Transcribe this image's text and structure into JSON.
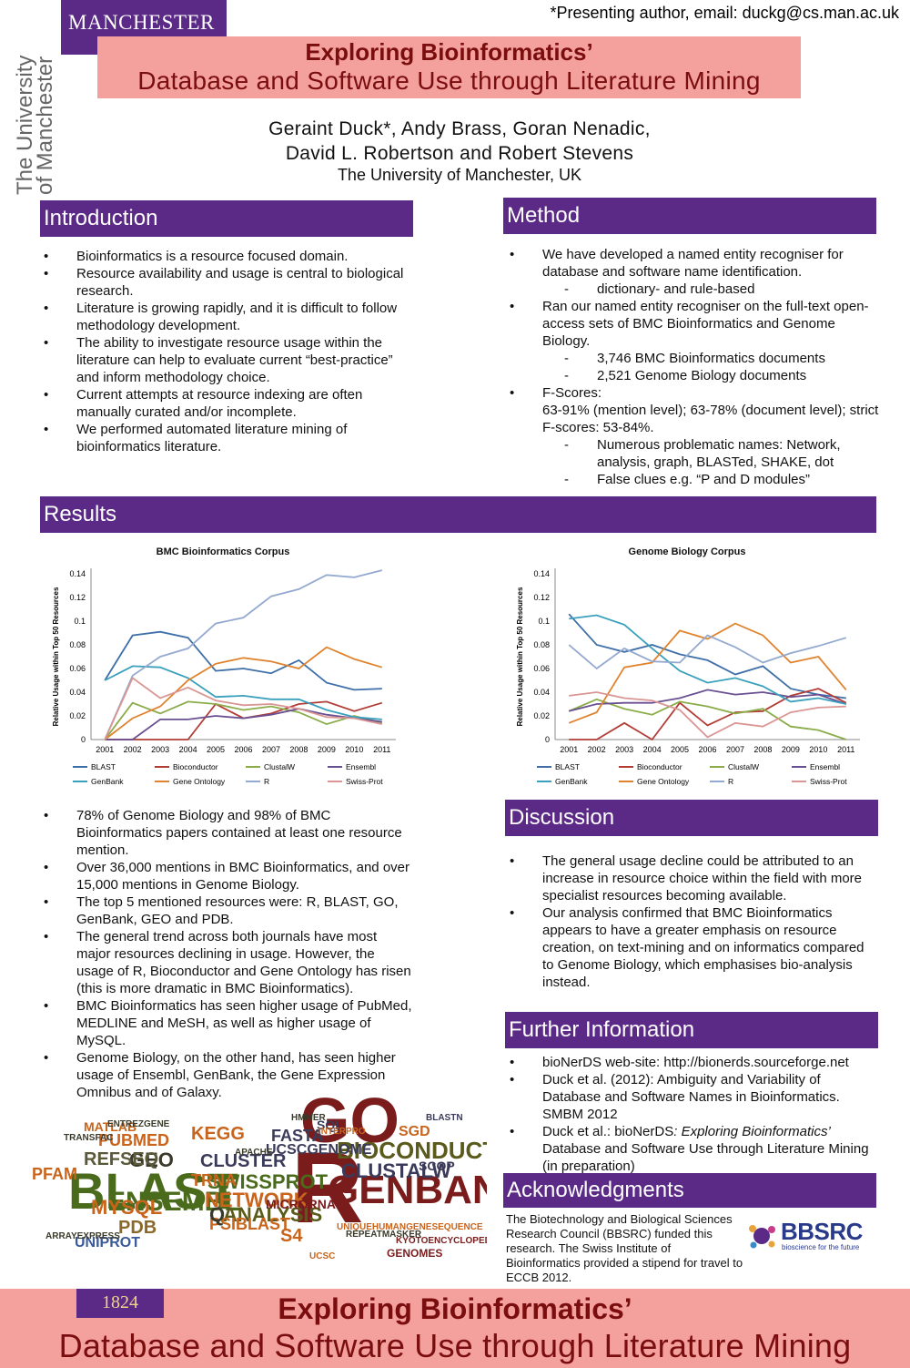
{
  "header": {
    "logo_name": "MANCHESTER",
    "logo_year": "1824",
    "univ_line1": "The University",
    "univ_line2": "of Manchester",
    "presenting": "*Presenting author, email: duckg@cs.man.ac.uk",
    "title_line1": "Exploring Bioinformatics’",
    "title_line2": "Database and Software Use through Literature Mining",
    "authors_line1": "Geraint Duck*, Andy Brass, Goran Nenadic,",
    "authors_line2": "David L. Robertson and Robert Stevens",
    "affiliation": "The University of Manchester, UK"
  },
  "introduction": {
    "heading": "Introduction",
    "bullets": [
      "Bioinformatics is a resource focused domain.",
      "Resource availability and usage is central to biological research.",
      "Literature is growing rapidly, and it is difficult to follow methodology development.",
      "The ability to investigate resource usage within the literature can help to evaluate current “best-practice” and inform methodology choice.",
      "Current attempts at resource indexing are often manually curated and/or incomplete.",
      "We performed automated literature mining of bioinformatics literature."
    ]
  },
  "method": {
    "heading": "Method",
    "b1": "We have developed a named entity recogniser for database and software name identification.",
    "b1_sub": "dictionary- and rule-based",
    "b2": "Ran our named entity recogniser on the full-text open-access sets of BMC Bioinformatics and Genome Biology.",
    "b2_sub1": "3,746 BMC Bioinformatics documents",
    "b2_sub2": "2,521 Genome Biology documents",
    "b3_line1": "F-Scores:",
    "b3_line2": "63-91% (mention level); 63-78% (document level); strict F-scores: 53-84%.",
    "b3_sub1": "Numerous problematic names: Network, analysis, graph, BLASTed, SHAKE, dot",
    "b3_sub2": "False clues e.g. “P and D modules”"
  },
  "results": {
    "heading": "Results",
    "bullets": [
      "78% of Genome Biology and 98% of BMC Bioinformatics papers contained at least one resource mention.",
      "Over 36,000 mentions in BMC Bioinformatics, and over 15,000 mentions in Genome Biology.",
      "The top 5 mentioned resources were: R, BLAST, GO, GenBank, GEO and PDB.",
      "The general trend across both journals have most major resources declining in usage. However, the usage of R, Bioconductor and Gene Ontology has risen (this is more dramatic in BMC Bioinformatics).",
      "BMC Bioinformatics has seen higher usage of PubMed, MEDLINE and MeSH, as well as higher usage of MySQL.",
      "Genome Biology, on the other hand, has seen higher usage of Ensembl, GenBank, the Gene Expression Omnibus and of Galaxy."
    ]
  },
  "discussion": {
    "heading": "Discussion",
    "bullets": [
      "The general usage decline could be attributed to an increase in resource choice within the field with more specialist resources becoming available.",
      "Our analysis confirmed that BMC Bioinformatics appears to have a greater emphasis on resource creation, on text-mining and on informatics compared to Genome Biology, which emphasises bio-analysis instead."
    ]
  },
  "further": {
    "heading": "Further Information",
    "b1": "bioNerDS web-site: http://bionerds.sourceforge.net",
    "b2": "Duck et al. (2012): Ambiguity and Variability of Database and Software Names in Bioinformatics. SMBM 2012",
    "b3_a": "Duck et al.: bioNerDS",
    "b3_b": ": Exploring Bioinformatics’",
    "b3_c": " Database and Software Use through Literature Mining (in preparation)"
  },
  "acknowledgments": {
    "heading": "Acknowledgments",
    "text": "The Biotechnology and Biological Sciences Research Council (BBSRC) funded this research. The Swiss Institute of Bioinformatics provided a stipend for travel to ECCB 2012.",
    "logo_text": "BBSRC",
    "logo_tagline": "bioscience for the future"
  },
  "footer": {
    "year": "1824",
    "line1": "Exploring Bioinformatics’",
    "line2": "Database and Software Use through Literature Mining"
  },
  "word_cloud": {
    "words": [
      {
        "t": "GO",
        "c": "#7a1c1c"
      },
      {
        "t": "BLAST",
        "c": "#4a6a1c"
      },
      {
        "t": "R",
        "c": "#7a1c1c"
      },
      {
        "t": "GENBANK",
        "c": "#7a1c1c"
      },
      {
        "t": "BIOCONDUCTOR",
        "c": "#5a5a1c"
      },
      {
        "t": "ENSEMBL",
        "c": "#4a6a1c"
      },
      {
        "t": "GEO",
        "c": "#3a3a2a"
      },
      {
        "t": "SWISSPROT",
        "c": "#4a6a1c"
      },
      {
        "t": "CLUSTALW",
        "c": "#3a3a5a"
      },
      {
        "t": "NETWORK",
        "c": "#c8641c"
      },
      {
        "t": "CLUSTER",
        "c": "#3a3a5a"
      },
      {
        "t": "PDB",
        "c": "#8a6a2a"
      },
      {
        "t": "MYSQL",
        "c": "#c8641c"
      },
      {
        "t": "KEGG",
        "c": "#c8641c"
      },
      {
        "t": "REFSEQ",
        "c": "#5a5a3a"
      },
      {
        "t": "PUBMED",
        "c": "#c8641c"
      },
      {
        "t": "ANALYSIS",
        "c": "#5a5a1c"
      },
      {
        "t": "PSIBLAST",
        "c": "#c8641c"
      },
      {
        "t": "FASTA",
        "c": "#3a3a5a"
      },
      {
        "t": "UCSCGENOME",
        "c": "#3a3a5a"
      },
      {
        "t": "PFAM",
        "c": "#c8641c"
      },
      {
        "t": "UNIPROT",
        "c": "#3a5a9a"
      },
      {
        "t": "TRNA",
        "c": "#c8641c"
      },
      {
        "t": "Q",
        "c": "#3a3a2a"
      },
      {
        "t": "S4",
        "c": "#c8641c"
      },
      {
        "t": "SGD",
        "c": "#c8641c"
      },
      {
        "t": "SCOP",
        "c": "#3a3a5a"
      },
      {
        "t": "MICRORNA",
        "c": "#7a1c1c"
      },
      {
        "t": "SQL",
        "c": "#3a3a5a"
      },
      {
        "t": "MATLAB",
        "c": "#c8641c"
      },
      {
        "t": "GENOMES",
        "c": "#7a1c1c"
      },
      {
        "t": "ARRAYEXPRESS",
        "c": "#3a3a2a"
      },
      {
        "t": "KYOTOENCYCLOPEDIA",
        "c": "#7a1c1c"
      },
      {
        "t": "UNIQUEHUMANGENESEQUENCE",
        "c": "#c8641c"
      },
      {
        "t": "REPEATMASKER",
        "c": "#3a3a2a"
      },
      {
        "t": "HMMER",
        "c": "#3a3a2a"
      },
      {
        "t": "APACHE",
        "c": "#3a3a2a"
      },
      {
        "t": "INTERPRO",
        "c": "#c8641c"
      },
      {
        "t": "TRANSFAC",
        "c": "#3a3a2a"
      },
      {
        "t": "ENTREZGENE",
        "c": "#3a3a2a"
      },
      {
        "t": "UCSC",
        "c": "#c8641c"
      },
      {
        "t": "BLASTN",
        "c": "#3a3a5a"
      }
    ]
  },
  "chart_data": [
    {
      "type": "line",
      "title": "BMC Bioinformatics Corpus",
      "xlabel": "",
      "ylabel": "Relative Usage within Top 50 Resources",
      "x": [
        "2001",
        "2002",
        "2003",
        "2004",
        "2005",
        "2006",
        "2007",
        "2008",
        "2009",
        "2010",
        "2011"
      ],
      "ylim": [
        0,
        0.14
      ],
      "yticks": [
        "0",
        "0.02",
        "0.04",
        "0.06",
        "0.08",
        "0.1",
        "0.12",
        "0.14"
      ],
      "legend_position": "bottom",
      "series": [
        {
          "name": "BLAST",
          "color": "#3f6fa8",
          "values": [
            0.05,
            0.088,
            0.091,
            0.086,
            0.058,
            0.06,
            0.056,
            0.067,
            0.048,
            0.042,
            0.043
          ]
        },
        {
          "name": "Bioconductor",
          "color": "#b23c36",
          "values": [
            0,
            0,
            0,
            0,
            0.03,
            0.018,
            0.022,
            0.03,
            0.032,
            0.024,
            0.031
          ]
        },
        {
          "name": "ClustalW",
          "color": "#8aac49",
          "values": [
            0,
            0.031,
            0.022,
            0.032,
            0.03,
            0.025,
            0.028,
            0.023,
            0.013,
            0.02,
            0.014
          ]
        },
        {
          "name": "Ensembl",
          "color": "#6a4f91",
          "values": [
            0,
            0,
            0.017,
            0.017,
            0.02,
            0.018,
            0.021,
            0.026,
            0.021,
            0.018,
            0.015
          ]
        },
        {
          "name": "GenBank",
          "color": "#3aa0bc",
          "values": [
            0.05,
            0.062,
            0.061,
            0.052,
            0.036,
            0.037,
            0.034,
            0.034,
            0.025,
            0.019,
            0.017
          ]
        },
        {
          "name": "Gene Ontology",
          "color": "#e0832e",
          "values": [
            0,
            0.018,
            0.028,
            0.05,
            0.064,
            0.069,
            0.066,
            0.06,
            0.078,
            0.068,
            0.061
          ]
        },
        {
          "name": "R",
          "color": "#93a9cf",
          "values": [
            0,
            0.054,
            0.07,
            0.077,
            0.098,
            0.103,
            0.121,
            0.127,
            0.139,
            0.137,
            0.143
          ]
        },
        {
          "name": "Swiss-Prot",
          "color": "#d99694",
          "values": [
            0,
            0.052,
            0.035,
            0.044,
            0.033,
            0.029,
            0.03,
            0.026,
            0.019,
            0.018,
            0.013
          ]
        }
      ]
    },
    {
      "type": "line",
      "title": "Genome Biology Corpus",
      "xlabel": "",
      "ylabel": "Relative Usage within Top 50 Resources",
      "x": [
        "2001",
        "2002",
        "2003",
        "2004",
        "2005",
        "2006",
        "2007",
        "2008",
        "2009",
        "2010",
        "2011"
      ],
      "ylim": [
        0,
        0.14
      ],
      "yticks": [
        "0",
        "0.02",
        "0.04",
        "0.06",
        "0.08",
        "0.1",
        "0.12",
        "0.14"
      ],
      "legend_position": "bottom",
      "series": [
        {
          "name": "BLAST",
          "color": "#3f6fa8",
          "values": [
            0.106,
            0.08,
            0.074,
            0.08,
            0.072,
            0.067,
            0.055,
            0.062,
            0.043,
            0.038,
            0.035
          ]
        },
        {
          "name": "Bioconductor",
          "color": "#b23c36",
          "values": [
            0,
            0,
            0.014,
            0,
            0.031,
            0.012,
            0.023,
            0.024,
            0.037,
            0.043,
            0.031
          ]
        },
        {
          "name": "ClustalW",
          "color": "#8aac49",
          "values": [
            0.024,
            0.034,
            0.026,
            0.021,
            0.032,
            0.028,
            0.022,
            0.026,
            0.011,
            0.008,
            0
          ]
        },
        {
          "name": "Ensembl",
          "color": "#6a4f91",
          "values": [
            0.024,
            0.03,
            0.031,
            0.031,
            0.035,
            0.042,
            0.038,
            0.04,
            0.036,
            0.038,
            0.03
          ]
        },
        {
          "name": "GenBank",
          "color": "#3aa0bc",
          "values": [
            0.102,
            0.105,
            0.097,
            0.077,
            0.058,
            0.048,
            0.052,
            0.045,
            0.032,
            0.035,
            0.03
          ]
        },
        {
          "name": "Gene Ontology",
          "color": "#e0832e",
          "values": [
            0.014,
            0.023,
            0.061,
            0.065,
            0.092,
            0.085,
            0.098,
            0.088,
            0.065,
            0.07,
            0.042
          ]
        },
        {
          "name": "R",
          "color": "#93a9cf",
          "values": [
            0.08,
            0.06,
            0.077,
            0.066,
            0.065,
            0.088,
            0.078,
            0.065,
            0.073,
            0.079,
            0.086
          ]
        },
        {
          "name": "Swiss-Prot",
          "color": "#d99694",
          "values": [
            0.037,
            0.04,
            0.035,
            0.033,
            0.025,
            0.002,
            0.014,
            0.011,
            0.023,
            0.027,
            0.028
          ]
        }
      ]
    }
  ]
}
